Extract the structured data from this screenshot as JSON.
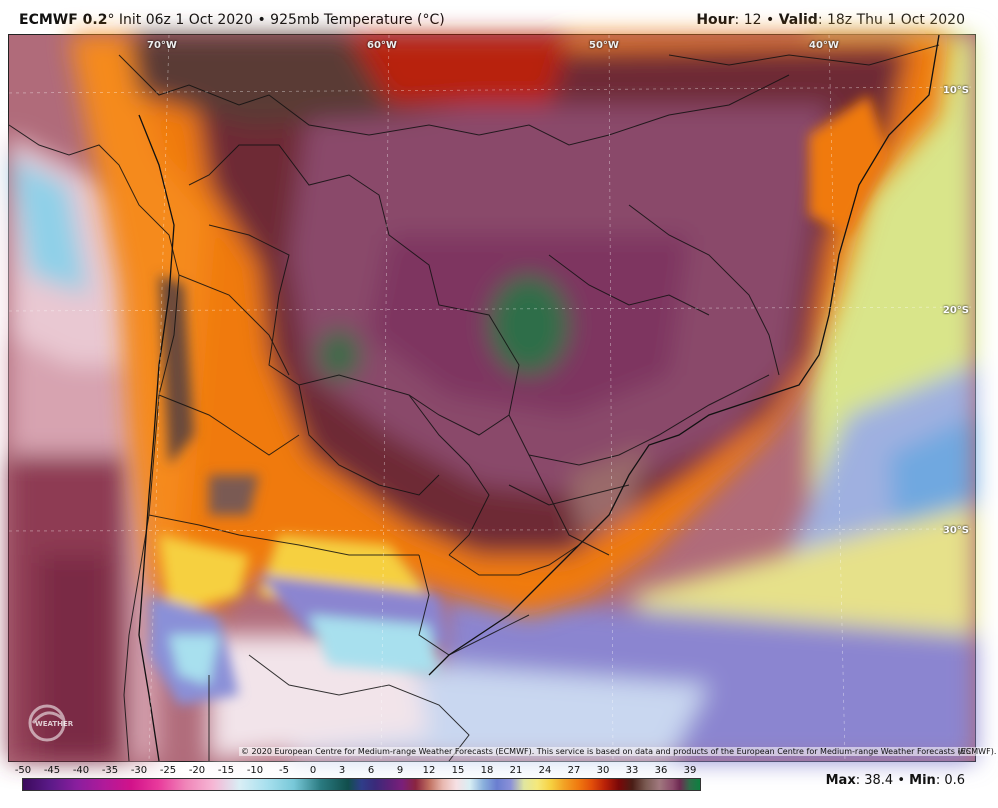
{
  "header": {
    "model": "ECMWF 0.2",
    "degree": "°",
    "init": "Init 06z 1 Oct 2020",
    "sep": "•",
    "field": "925mb Temperature (°C)",
    "hour_label": "Hour",
    "hour_value": ": 12",
    "valid_label": "Valid",
    "valid_value": ": 18z Thu 1 Oct 2020"
  },
  "map": {
    "lon_labels": [
      "70°W",
      "60°W",
      "50°W",
      "40°W"
    ],
    "lat_labels": [
      "10°S",
      "20°S",
      "30°S"
    ],
    "copyright": "© 2020 European Centre for Medium-range Weather Forecasts (ECMWF). This service is based on data and products of the European Centre for Medium-range Weather Forecasts (ECMWF).",
    "watermark": "WEATHER",
    "corner_mark": "WS"
  },
  "legend": {
    "ticks": [
      "-50",
      "-45",
      "-40",
      "-35",
      "-30",
      "-25",
      "-20",
      "-15",
      "-10",
      "-5",
      "0",
      "3",
      "6",
      "9",
      "12",
      "15",
      "18",
      "21",
      "24",
      "27",
      "30",
      "33",
      "36",
      "39"
    ],
    "max_label": "Max",
    "max_value": ": 38.4",
    "min_label": "Min",
    "min_value": ": 0.6"
  },
  "colors": {
    "hot_core": "#8a4a6a",
    "warm_orange": "#f07a10",
    "cool_purple": "#6a6ed0",
    "ocean_pink": "#e8b8c0"
  }
}
